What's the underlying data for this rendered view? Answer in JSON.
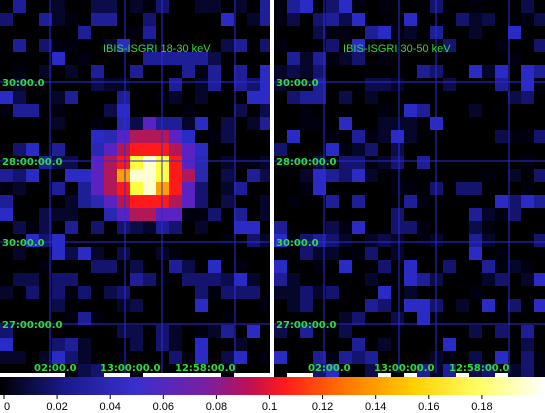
{
  "panels": [
    {
      "id": "left",
      "title": "IBIS-ISGRI 18-30 keV",
      "y_labels": [
        "30:00.0",
        "28:00:00.0",
        "30:00.0",
        "27:00:00.0"
      ],
      "x_labels": [
        "02:00.0",
        "13:00:00.0",
        "12:58:00.0"
      ],
      "source": true
    },
    {
      "id": "right",
      "title": "IBIS-ISGRI 30-50 keV",
      "y_labels": [
        "30:00.0",
        "28:00:00.0",
        "30:00.0",
        "27:00:00.0"
      ],
      "x_labels": [
        "02:00.0",
        "13:00:00.0",
        "12:58:00.0"
      ],
      "source": false
    }
  ],
  "colorbar": {
    "ticks": [
      "0",
      "0.02",
      "0.04",
      "0.06",
      "0.08",
      "0.1",
      "0.12",
      "0.14",
      "0.16",
      "0.18"
    ],
    "min": 0,
    "max": 0.2,
    "colormap": [
      "#000000",
      "#1a1a8c",
      "#3a2fcf",
      "#7a1fa0",
      "#c01050",
      "#ff1a1a",
      "#ff7a00",
      "#ffd000",
      "#ffff66",
      "#ffffff"
    ]
  },
  "colors": {
    "grid": "#2b2bdc",
    "label": "#2edc3a",
    "divider": "#ffffff",
    "background": "#000000"
  }
}
